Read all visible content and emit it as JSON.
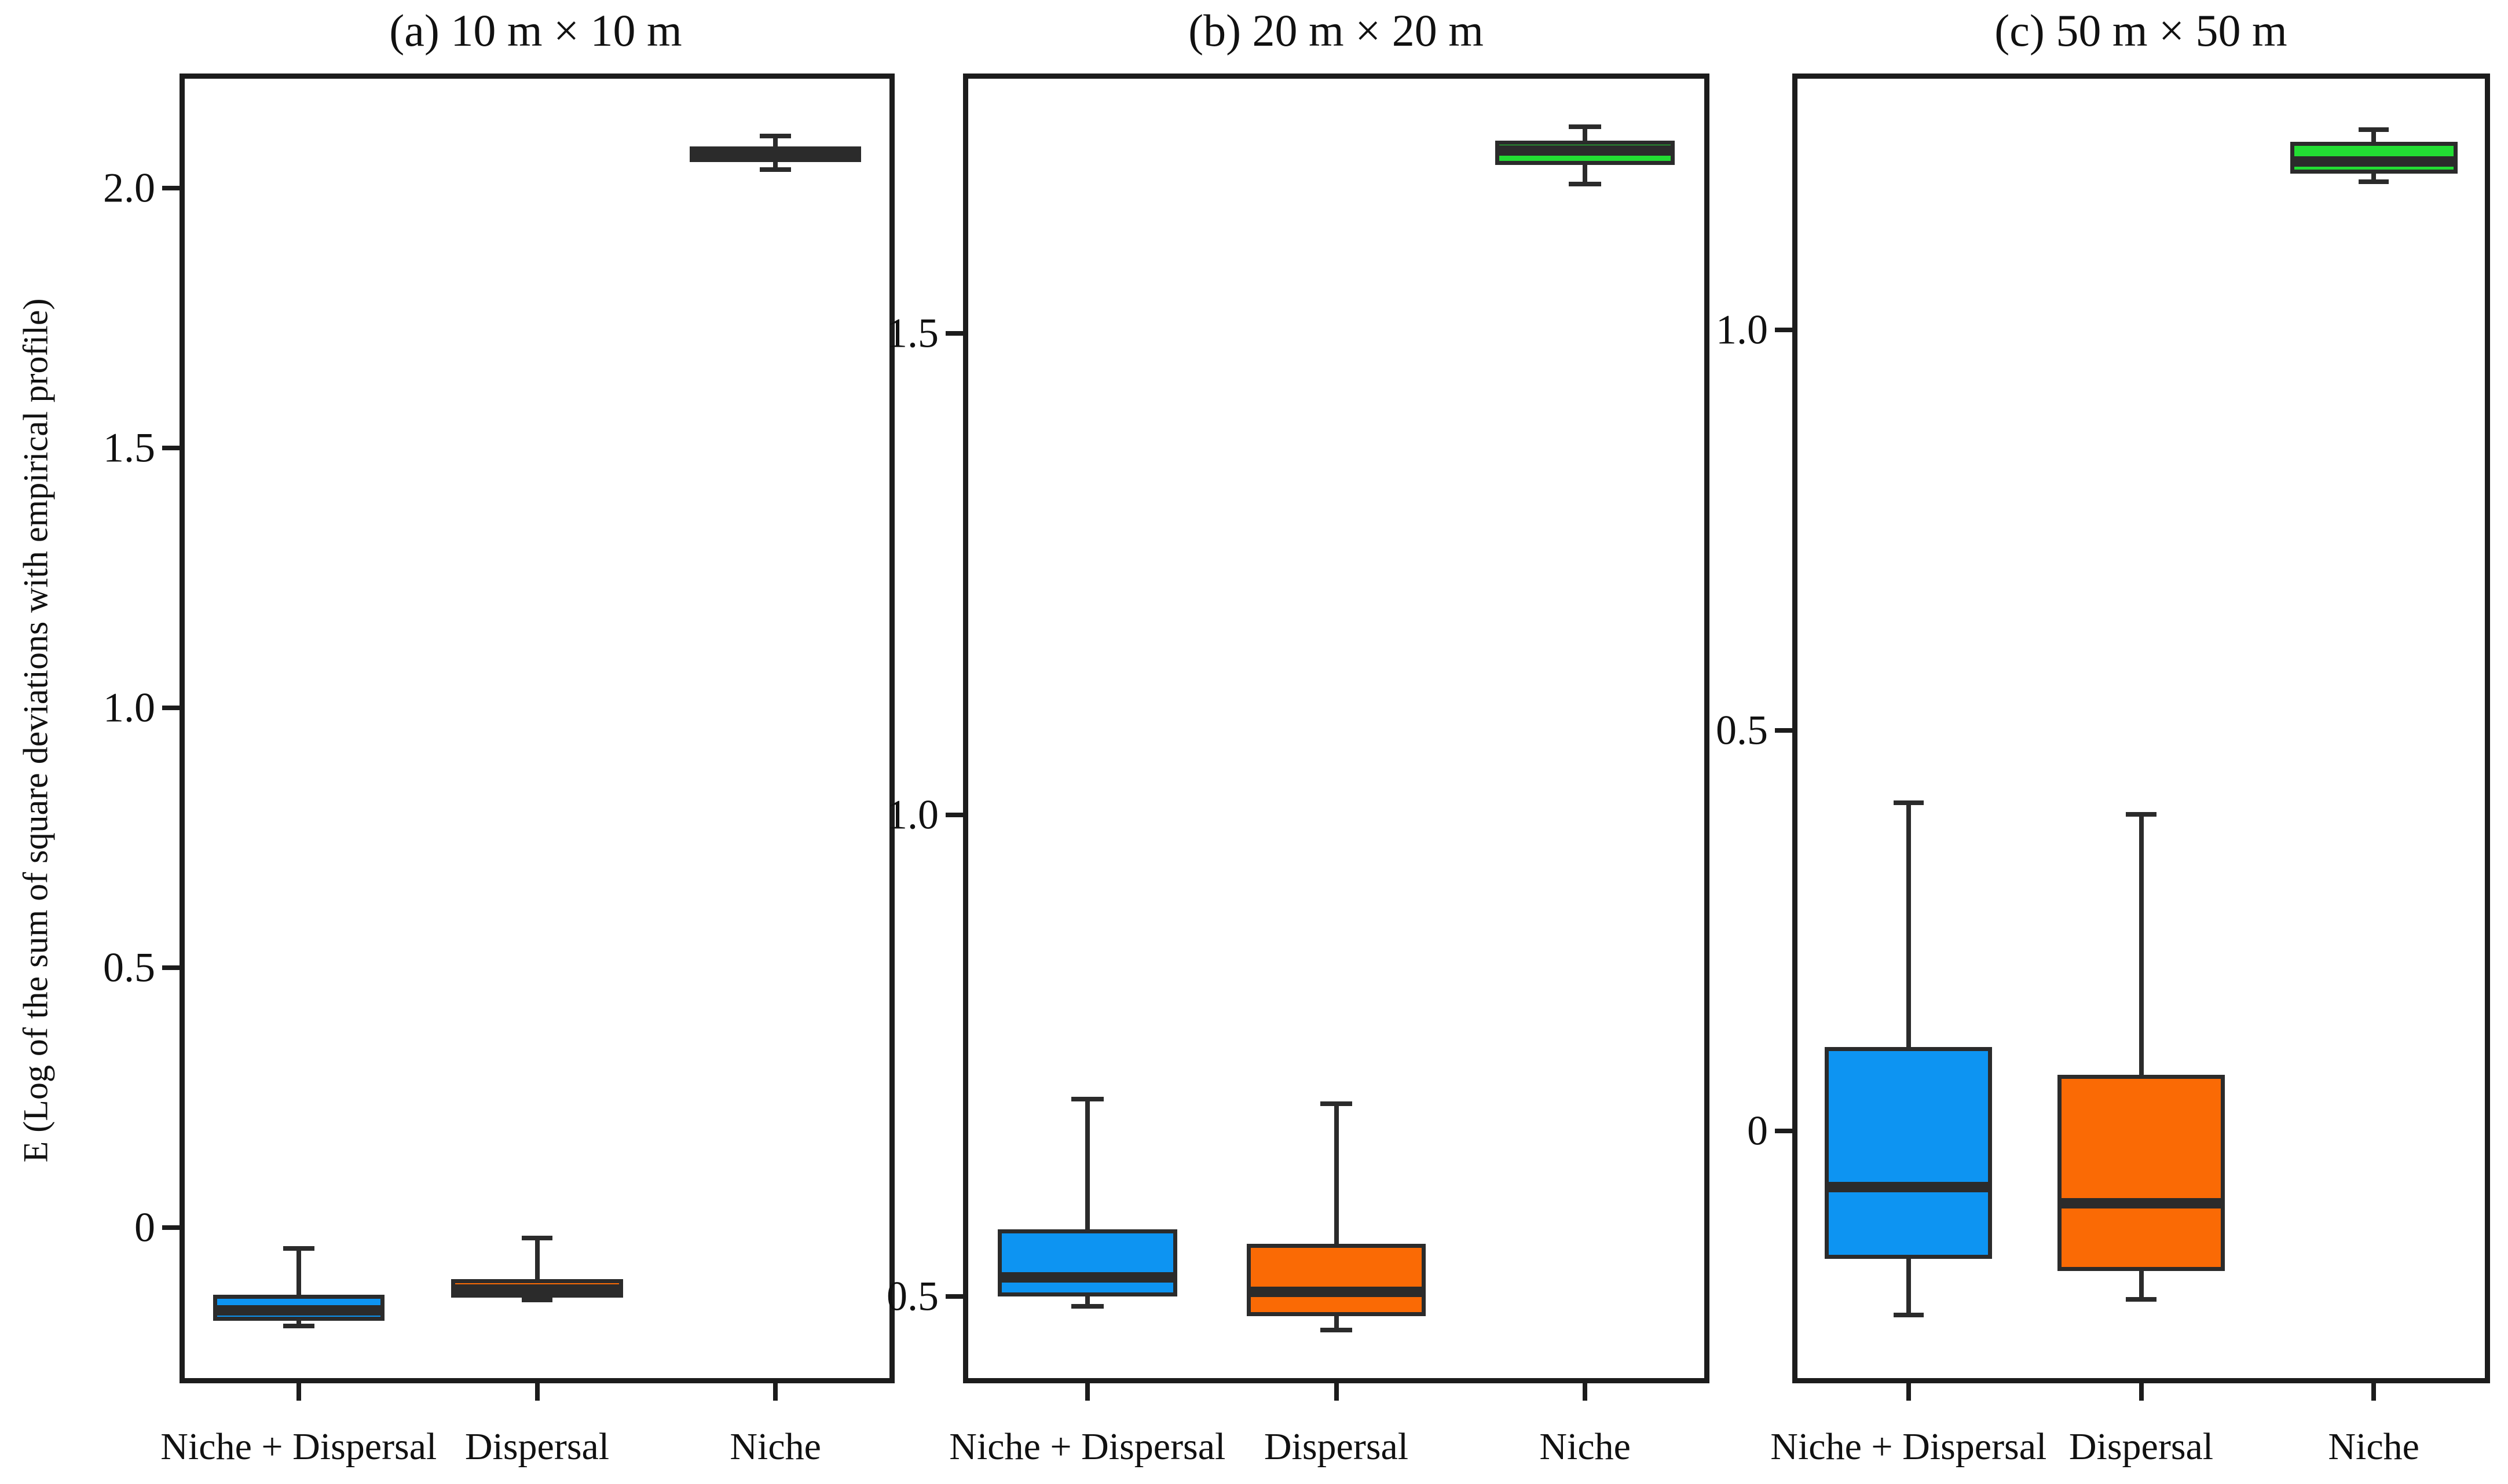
{
  "figure": {
    "y_axis_label": "E (Log of the sum of square deviations with empirical profile)",
    "categories": [
      "Niche + Dispersal",
      "Dispersal",
      "Niche"
    ],
    "colors": {
      "niche_dispersal": "#0d94f2",
      "dispersal": "#fa6a05",
      "niche": "#22dd33",
      "line": "#2b2b2b",
      "text": "#111111",
      "background": "#ffffff"
    }
  },
  "chart_data": [
    {
      "type": "boxplot",
      "title": "(a) 10 m × 10 m",
      "categories": [
        "Niche + Dispersal",
        "Dispersal",
        "Niche"
      ],
      "ylim": [
        -0.3,
        2.22
      ],
      "grid": false,
      "legend": "none",
      "yticks": [
        {
          "value": 2.0,
          "label": "2.0"
        },
        {
          "value": 1.5,
          "label": "1.5"
        },
        {
          "value": 1.0,
          "label": "1.0"
        },
        {
          "value": 0.5,
          "label": "0.5"
        },
        {
          "value": 0.0,
          "label": "0"
        }
      ],
      "boxes": [
        {
          "label": "Niche + Dispersal",
          "color": "niche_dispersal",
          "whislo": -0.19,
          "q1": -0.18,
          "med": -0.16,
          "q3": -0.13,
          "whishi": -0.04
        },
        {
          "label": "Dispersal",
          "color": "dispersal",
          "whislo": -0.14,
          "q1": -0.135,
          "med": -0.12,
          "q3": -0.1,
          "whishi": -0.02
        },
        {
          "label": "Niche",
          "color": "niche",
          "whislo": 2.035,
          "q1": 2.05,
          "med": 2.065,
          "q3": 2.08,
          "whishi": 2.1
        }
      ]
    },
    {
      "type": "boxplot",
      "title": "(b) 20 m × 20 m",
      "categories": [
        "Niche + Dispersal",
        "Dispersal",
        "Niche"
      ],
      "ylim": [
        0.41,
        1.77
      ],
      "grid": false,
      "legend": "none",
      "yticks": [
        {
          "value": 1.5,
          "label": "1.5"
        },
        {
          "value": 1.0,
          "label": "1.0"
        },
        {
          "value": 0.5,
          "label": "0.5"
        }
      ],
      "boxes": [
        {
          "label": "Niche + Dispersal",
          "color": "niche_dispersal",
          "whislo": 0.49,
          "q1": 0.5,
          "med": 0.52,
          "q3": 0.57,
          "whishi": 0.705
        },
        {
          "label": "Dispersal",
          "color": "dispersal",
          "whislo": 0.465,
          "q1": 0.48,
          "med": 0.505,
          "q3": 0.555,
          "whishi": 0.7
        },
        {
          "label": "Niche",
          "color": "niche",
          "whislo": 1.655,
          "q1": 1.675,
          "med": 1.69,
          "q3": 1.7,
          "whishi": 1.715
        }
      ]
    },
    {
      "type": "boxplot",
      "title": "(c) 50 m × 50 m",
      "categories": [
        "Niche + Dispersal",
        "Dispersal",
        "Niche"
      ],
      "ylim": [
        -0.315,
        1.32
      ],
      "grid": false,
      "legend": "none",
      "yticks": [
        {
          "value": 1.0,
          "label": "1.0"
        },
        {
          "value": 0.5,
          "label": "0.5"
        },
        {
          "value": 0.0,
          "label": "0"
        }
      ],
      "boxes": [
        {
          "label": "Niche + Dispersal",
          "color": "niche_dispersal",
          "whislo": -0.23,
          "q1": -0.16,
          "med": -0.07,
          "q3": 0.105,
          "whishi": 0.41
        },
        {
          "label": "Dispersal",
          "color": "dispersal",
          "whislo": -0.21,
          "q1": -0.175,
          "med": -0.09,
          "q3": 0.07,
          "whishi": 0.395
        },
        {
          "label": "Niche",
          "color": "niche",
          "whislo": 1.185,
          "q1": 1.195,
          "med": 1.21,
          "q3": 1.235,
          "whishi": 1.25
        }
      ]
    }
  ]
}
